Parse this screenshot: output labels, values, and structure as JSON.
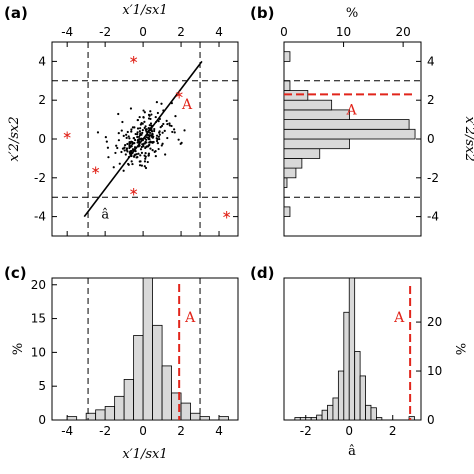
{
  "chart_data": [
    {
      "panel": "(a)",
      "type": "scatter",
      "xlabel": "x′1/sx1",
      "ylabel": "x′2/sx2",
      "xlim": [
        -4.8,
        5.0
      ],
      "ylim": [
        -5.0,
        5.0
      ],
      "xticks": [
        -4,
        -2,
        0,
        2,
        4
      ],
      "yticks": [
        -4,
        -2,
        0,
        2,
        4
      ],
      "xticks_position": "top",
      "dashed_lines": {
        "x": [
          -2.9,
          3.0
        ],
        "y": [
          3.0,
          -3.0
        ]
      },
      "outliers": [
        [
          -0.5,
          4.1
        ],
        [
          -4.0,
          0.2
        ],
        [
          -2.5,
          -1.6
        ],
        [
          -0.5,
          -2.7
        ],
        [
          4.4,
          -3.9
        ],
        [
          1.9,
          2.3
        ]
      ],
      "fit_line": [
        [
          -3.1,
          -4.0
        ],
        [
          3.1,
          4.0
        ]
      ],
      "annotations": [
        "A",
        "â"
      ]
    },
    {
      "panel": "(b)",
      "type": "bar",
      "orientation": "horizontal",
      "xlabel": "%",
      "ylabel": "x′2/sx2",
      "xlim": [
        0,
        23
      ],
      "ylim": [
        -5.0,
        5.0
      ],
      "xticks": [
        0,
        10,
        20
      ],
      "yticks": [
        -4,
        -2,
        0,
        2,
        4
      ],
      "bin_edges": [
        -4.0,
        -3.5,
        -3.0,
        -2.5,
        -2.0,
        -1.5,
        -1.0,
        -0.5,
        0.0,
        0.5,
        1.0,
        1.5,
        2.0,
        2.5,
        3.0,
        3.5,
        4.0,
        4.5
      ],
      "values": [
        1,
        0,
        0,
        0.5,
        2,
        3,
        6,
        11,
        22,
        21,
        11,
        8,
        4,
        1,
        0,
        0,
        1
      ],
      "dashed_lines": {
        "y": [
          3.0,
          -3.0
        ]
      },
      "marker_A": 2.3,
      "annotations": [
        "A"
      ]
    },
    {
      "panel": "(c)",
      "type": "bar",
      "xlabel": "x′1/sx1",
      "ylabel": "%",
      "xlim": [
        -4.8,
        5.0
      ],
      "ylim": [
        0,
        21
      ],
      "xticks": [
        -4,
        -2,
        0,
        2,
        4
      ],
      "yticks": [
        0,
        5,
        10,
        15,
        20
      ],
      "bin_edges": [
        -4.0,
        -3.5,
        -3.0,
        -2.5,
        -2.0,
        -1.5,
        -1.0,
        -0.5,
        0.0,
        0.5,
        1.0,
        1.5,
        2.0,
        2.5,
        3.0,
        3.5,
        4.0,
        4.5
      ],
      "values": [
        0.5,
        0,
        1,
        1.5,
        2,
        3.5,
        6,
        12.5,
        21,
        14,
        8,
        4,
        2.5,
        1,
        0.5,
        0,
        0.5
      ],
      "dashed_lines": {
        "x": [
          -2.9,
          3.0
        ]
      },
      "marker_A": 1.9,
      "annotations": [
        "A"
      ]
    },
    {
      "panel": "(d)",
      "type": "bar",
      "xlabel": "â",
      "ylabel": "%",
      "xlim": [
        -3.0,
        3.3
      ],
      "ylim": [
        0,
        29
      ],
      "xticks": [
        -2,
        0,
        2
      ],
      "yticks": [
        0,
        10,
        20
      ],
      "yticks_position": "right",
      "bin_edges": [
        -2.5,
        -2.25,
        -2.0,
        -1.75,
        -1.5,
        -1.25,
        -1.0,
        -0.75,
        -0.5,
        -0.25,
        0.0,
        0.25,
        0.5,
        0.75,
        1.0,
        1.25,
        1.5,
        1.75,
        2.0,
        2.25,
        2.5,
        2.75,
        3.0
      ],
      "values": [
        0.5,
        0.5,
        0.5,
        0.5,
        1,
        2,
        3,
        4.5,
        10,
        22,
        29,
        14,
        9,
        3,
        2.5,
        0.5,
        0,
        0,
        0,
        0,
        0,
        0.7
      ],
      "marker_A": 2.8,
      "annotations": [
        "A"
      ]
    }
  ],
  "labels": {
    "panel_a": "(a)",
    "panel_b": "(b)",
    "panel_c": "(c)",
    "panel_d": "(d)",
    "a_top_xlabel": "x′1/sx1",
    "a_ylabel": "x′2/sx2",
    "b_top_xlabel": "%",
    "b_right_ylabel": "x′2/sx2",
    "c_xlabel": "x′1/sx1",
    "c_ylabel": "%",
    "d_xlabel": "â",
    "d_ylabel": "%",
    "marker_A": "A",
    "ahat": "â"
  },
  "colors": {
    "accent_red": "#e1251b",
    "bar_fill": "#d9d9d9"
  }
}
